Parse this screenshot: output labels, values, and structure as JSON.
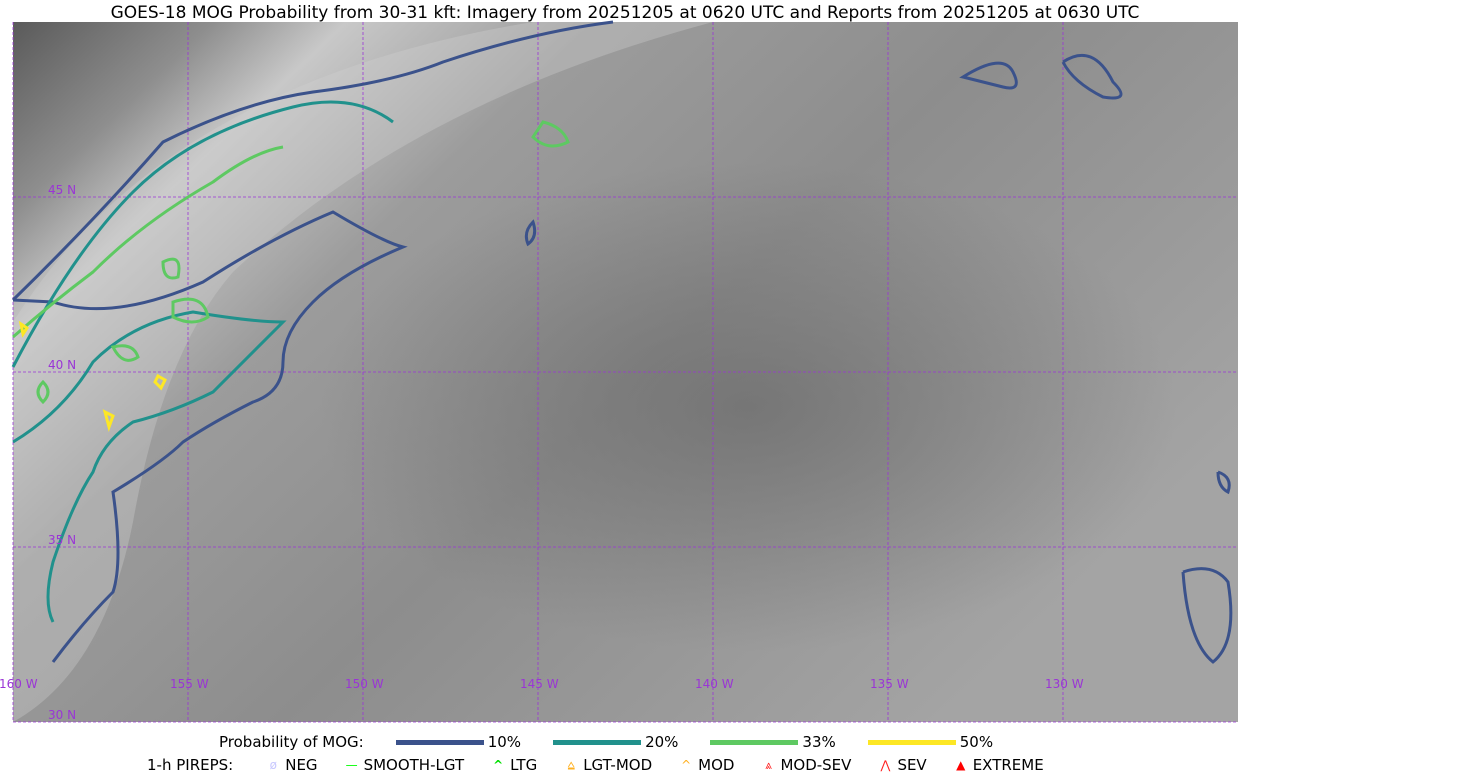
{
  "title": "GOES-18 MOG Probability from 30-31 kft: Imagery from 20251205 at 0620 UTC and Reports from 20251205 at 0630 UTC",
  "map": {
    "lat_labels": [
      "45 N",
      "40 N",
      "35 N",
      "30 N"
    ],
    "lon_labels": [
      "160 W",
      "155 W",
      "150 W",
      "145 W",
      "140 W",
      "135 W",
      "130 W"
    ],
    "gridline_color": "#9a35d6"
  },
  "legend": {
    "probability_title": "Probability of MOG:",
    "probability_items": [
      {
        "label": "10%",
        "color": "#3b528b"
      },
      {
        "label": "20%",
        "color": "#21918c"
      },
      {
        "label": "33%",
        "color": "#5ec962"
      },
      {
        "label": "50%",
        "color": "#fde725"
      }
    ],
    "pireps_title": "1-h PIREPS:",
    "pireps_items": [
      {
        "label": "NEG",
        "icon": "neg-circle-icon",
        "color": "#c8c8ff"
      },
      {
        "label": "SMOOTH-LGT",
        "icon": "line-icon",
        "color": "#00ff00"
      },
      {
        "label": "LTG",
        "icon": "caret-icon",
        "color": "#00e000"
      },
      {
        "label": "LGT-MOD",
        "icon": "caret-bar-icon",
        "color": "#ffb020"
      },
      {
        "label": "MOD",
        "icon": "caret-icon",
        "color": "#ffb020"
      },
      {
        "label": "MOD-SEV",
        "icon": "double-caret-bar-icon",
        "color": "#ff2020"
      },
      {
        "label": "SEV",
        "icon": "double-caret-icon",
        "color": "#ff2020"
      },
      {
        "label": "EXTREME",
        "icon": "filled-triangle-icon",
        "color": "#ff0000"
      }
    ]
  }
}
